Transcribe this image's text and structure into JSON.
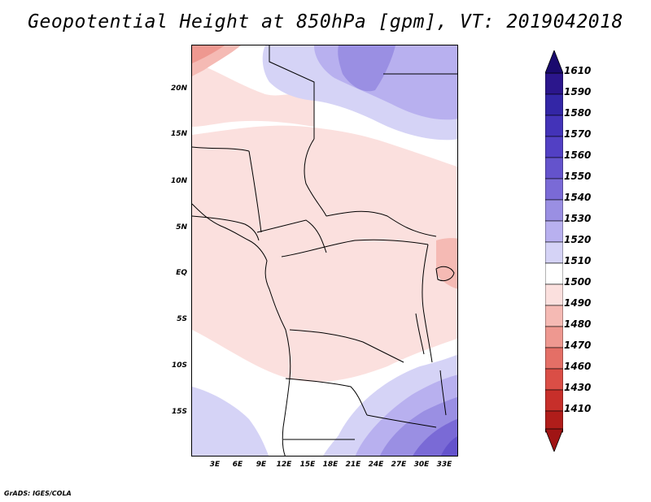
{
  "title": "Geopotential Height at 850hPa [gpm], VT: 2019042018",
  "map": {
    "lat_labels": [
      "20N",
      "15N",
      "10N",
      "5N",
      "EQ",
      "5S",
      "10S",
      "15S"
    ],
    "lon_labels": [
      "3E",
      "6E",
      "9E",
      "12E",
      "15E",
      "18E",
      "21E",
      "24E",
      "27E",
      "30E",
      "33E"
    ]
  },
  "colorbar": {
    "levels": [
      "1610",
      "1590",
      "1580",
      "1570",
      "1560",
      "1550",
      "1540",
      "1530",
      "1520",
      "1510",
      "1500",
      "1490",
      "1480",
      "1470",
      "1460",
      "1430",
      "1410"
    ],
    "colors": [
      "#2b168c",
      "#3326a6",
      "#4333b8",
      "#5240c4",
      "#6453cc",
      "#7a6ad6",
      "#9a8fe3",
      "#b8b0ef",
      "#d5d3f6",
      "#ffffff",
      "#fbe0de",
      "#f5bab4",
      "#ee9890",
      "#e46f66",
      "#da4e46",
      "#c72f2a",
      "#b01d1a"
    ],
    "top_color": "#1a0a6e",
    "bottom_color": "#a01414"
  },
  "credit": "GrADS: IGES/COLA"
}
